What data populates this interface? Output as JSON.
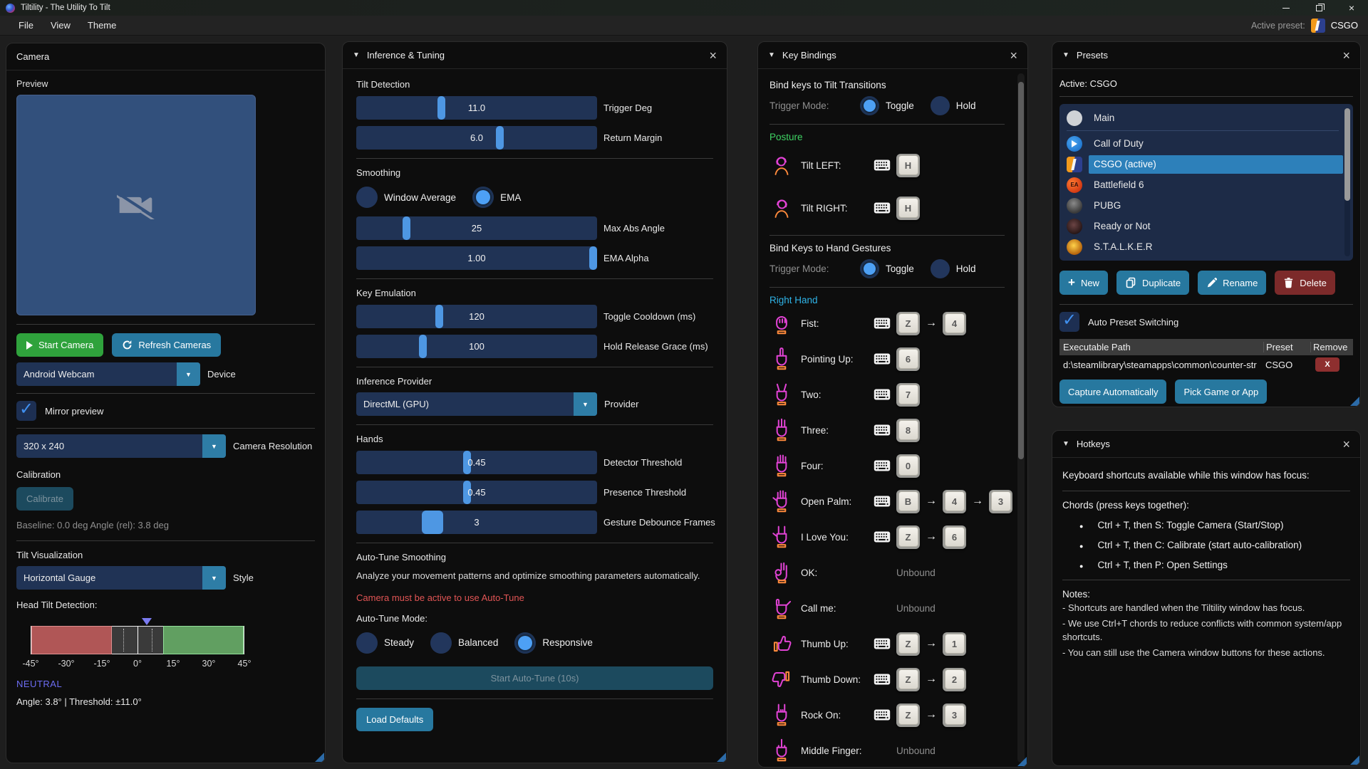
{
  "window": {
    "title": "Tiltility - The Utility To Tilt",
    "menu": [
      "File",
      "View",
      "Theme"
    ],
    "active_preset_label": "Active preset:",
    "active_preset_name": "CSGO"
  },
  "icons": {
    "collapse": "▼",
    "close": "×",
    "dropdown": "▼",
    "check": "✓",
    "arrow": "→",
    "plus": "+",
    "bullet": "●"
  },
  "camera": {
    "title": "Camera",
    "preview_label": "Preview",
    "start_button": "Start Camera",
    "refresh_button": "Refresh Cameras",
    "device_value": "Android Webcam",
    "device_label": "Device",
    "mirror_label": "Mirror preview",
    "resolution_value": "320 x 240",
    "resolution_label": "Camera Resolution",
    "calibration_title": "Calibration",
    "calibrate_button": "Calibrate",
    "baseline_text": "Baseline: 0.0 deg   Angle (rel): 3.8 deg",
    "tilt_viz_title": "Tilt Visualization",
    "style_value": "Horizontal Gauge",
    "style_label": "Style",
    "gauge_title": "Head Tilt Detection:",
    "gauge": {
      "ticks": [
        "-45°",
        "-30°",
        "-15°",
        "0°",
        "15°",
        "30°",
        "45°"
      ],
      "range": [
        -45,
        45
      ],
      "angle_deg": 3.8,
      "threshold_deg": 11.0,
      "return_margin": 6.0,
      "state": "NEUTRAL",
      "status_line": "Angle: 3.8° | Threshold: ±11.0°"
    }
  },
  "tuning": {
    "title": "Inference & Tuning",
    "tilt_detection": {
      "title": "Tilt Detection",
      "sliders": [
        {
          "value": "11.0",
          "label": "Trigger Deg",
          "pct": 35
        },
        {
          "value": "6.0",
          "label": "Return Margin",
          "pct": 60
        }
      ]
    },
    "smoothing": {
      "title": "Smoothing",
      "radios": [
        {
          "label": "Window Average",
          "selected": false
        },
        {
          "label": "EMA",
          "selected": true
        }
      ],
      "sliders": [
        {
          "value": "25",
          "label": "Max Abs Angle",
          "pct": 20
        },
        {
          "value": "1.00",
          "label": "EMA Alpha",
          "pct": 100
        }
      ]
    },
    "key_emulation": {
      "title": "Key Emulation",
      "sliders": [
        {
          "value": "120",
          "label": "Toggle Cooldown (ms)",
          "pct": 34
        },
        {
          "value": "100",
          "label": "Hold Release Grace (ms)",
          "pct": 27
        }
      ]
    },
    "provider": {
      "title": "Inference Provider",
      "value": "DirectML (GPU)",
      "label": "Provider"
    },
    "hands": {
      "title": "Hands",
      "sliders": [
        {
          "value": "0.45",
          "label": "Detector Threshold",
          "pct": 46
        },
        {
          "value": "0.45",
          "label": "Presence Threshold",
          "pct": 46
        },
        {
          "value": "3",
          "label": "Gesture Debounce Frames",
          "pct": 30,
          "wide": true
        }
      ]
    },
    "autotune": {
      "title": "Auto-Tune Smoothing",
      "description": "Analyze your movement patterns and optimize smoothing parameters automatically.",
      "warning": "Camera must be active to use Auto-Tune",
      "mode_label": "Auto-Tune Mode:",
      "modes": [
        {
          "label": "Steady",
          "selected": false
        },
        {
          "label": "Balanced",
          "selected": false
        },
        {
          "label": "Responsive",
          "selected": true
        }
      ],
      "start_button": "Start Auto-Tune (10s)",
      "load_defaults": "Load Defaults"
    }
  },
  "keybindings": {
    "title": "Key Bindings",
    "tilt_section": {
      "heading": "Bind keys to Tilt Transitions",
      "trigger_label": "Trigger Mode:",
      "modes": [
        {
          "label": "Toggle",
          "selected": true
        },
        {
          "label": "Hold",
          "selected": false
        }
      ]
    },
    "posture": {
      "heading": "Posture",
      "rows": [
        {
          "gesture": "tilt-left",
          "label": "Tilt LEFT:",
          "keys": [
            "H"
          ]
        },
        {
          "gesture": "tilt-right",
          "label": "Tilt RIGHT:",
          "keys": [
            "H"
          ]
        }
      ]
    },
    "gesture_section": {
      "heading": "Bind Keys to Hand Gestures",
      "trigger_label": "Trigger Mode:",
      "modes": [
        {
          "label": "Toggle",
          "selected": true
        },
        {
          "label": "Hold",
          "selected": false
        }
      ]
    },
    "right_hand": {
      "heading": "Right Hand",
      "rows": [
        {
          "gesture": "fist",
          "label": "Fist:",
          "keys": [
            "Z",
            "4"
          ]
        },
        {
          "gesture": "pointing-up",
          "label": "Pointing Up:",
          "keys": [
            "6"
          ]
        },
        {
          "gesture": "two",
          "label": "Two:",
          "keys": [
            "7"
          ]
        },
        {
          "gesture": "three",
          "label": "Three:",
          "keys": [
            "8"
          ]
        },
        {
          "gesture": "four",
          "label": "Four:",
          "keys": [
            "0"
          ]
        },
        {
          "gesture": "open-palm",
          "label": "Open Palm:",
          "keys": [
            "B",
            "4",
            "3"
          ]
        },
        {
          "gesture": "i-love-you",
          "label": "I Love You:",
          "keys": [
            "Z",
            "6"
          ]
        },
        {
          "gesture": "ok",
          "label": "OK:",
          "keys": [],
          "unbound": "Unbound"
        },
        {
          "gesture": "call-me",
          "label": "Call me:",
          "keys": [],
          "unbound": "Unbound"
        },
        {
          "gesture": "thumb-up",
          "label": "Thumb Up:",
          "keys": [
            "Z",
            "1"
          ]
        },
        {
          "gesture": "thumb-down",
          "label": "Thumb Down:",
          "keys": [
            "Z",
            "2"
          ]
        },
        {
          "gesture": "rock-on",
          "label": "Rock On:",
          "keys": [
            "Z",
            "3"
          ]
        },
        {
          "gesture": "middle-finger",
          "label": "Middle Finger:",
          "keys": [],
          "unbound": "Unbound"
        }
      ]
    }
  },
  "presets": {
    "title": "Presets",
    "active_line": "Active: CSGO",
    "items": [
      {
        "name": "Main",
        "active": false
      },
      {
        "name": "Call of Duty",
        "active": false
      },
      {
        "name": "CSGO  (active)",
        "active": true
      },
      {
        "name": "Battlefield 6",
        "active": false
      },
      {
        "name": "PUBG",
        "active": false
      },
      {
        "name": "Ready or Not",
        "active": false
      },
      {
        "name": "S.T.A.L.K.E.R",
        "active": false
      }
    ],
    "buttons": {
      "new": "New",
      "duplicate": "Duplicate",
      "rename": "Rename",
      "delete": "Delete"
    },
    "auto_switch_label": "Auto Preset Switching",
    "table": {
      "headers": [
        "Executable Path",
        "Preset",
        "Remove"
      ],
      "rows": [
        {
          "path": "d:\\steamlibrary\\steamapps\\common\\counter-str",
          "preset": "CSGO",
          "remove": "X"
        }
      ]
    },
    "capture_button": "Capture Automatically",
    "pick_button": "Pick Game or App"
  },
  "hotkeys": {
    "title": "Hotkeys",
    "intro": "Keyboard shortcuts available while this window has focus:",
    "chords_title": "Chords (press keys together):",
    "chords": [
      "Ctrl + T, then S: Toggle Camera (Start/Stop)",
      "Ctrl + T, then C: Calibrate (start auto-calibration)",
      "Ctrl + T, then P: Open Settings"
    ],
    "notes_title": "Notes:",
    "notes": [
      "- Shortcuts are handled when the Tiltility window has focus.",
      "- We use Ctrl+T chords to reduce conflicts with common system/app shortcuts.",
      "- You can still use the Camera window buttons for these actions."
    ]
  },
  "colors": {
    "accent": "#4e97e3",
    "teal_button": "#27789f",
    "green_button": "#2fa23c",
    "danger_button": "#7c2a2a",
    "warning_text": "#e25555",
    "posture_heading": "#3fd464",
    "right_hand_heading": "#2fb4e8",
    "neutral_text": "#6c6cf2",
    "active_row": "#2d80ba",
    "slider_track": "#203355",
    "gauge_red": "#c55c5c",
    "gauge_green": "#68b268"
  }
}
